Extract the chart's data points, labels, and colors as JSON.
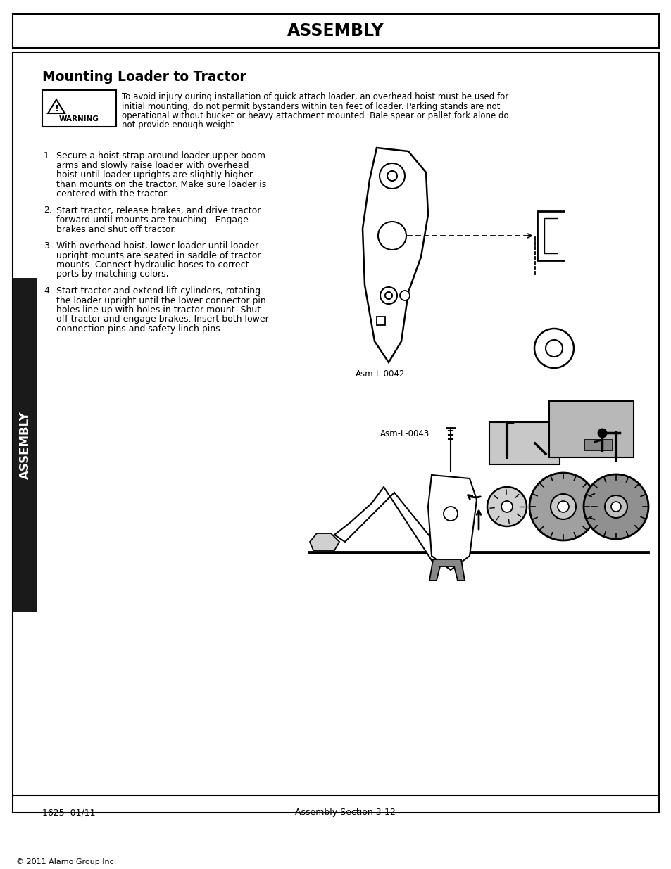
{
  "title": "ASSEMBLY",
  "section_title": "Mounting Loader to Tractor",
  "warning_lines": [
    "To avoid injury during installation of quick attach loader, an overhead hoist must be used for",
    "initial mounting, do not permit bystanders within ten feet of loader. Parking stands are not",
    "operational without bucket or heavy attachment mounted. Bale spear or pallet fork alone do",
    "not provide enough weight."
  ],
  "step1_lines": [
    "Secure a hoist strap around loader upper boom",
    "arms and slowly raise loader with overhead",
    "hoist until loader uprights are slightly higher",
    "than mounts on the tractor. Make sure loader is",
    "centered with the tractor."
  ],
  "step2_lines": [
    "Start tractor, release brakes, and drive tractor",
    "forward until mounts are touching.  Engage",
    "brakes and shut off tractor."
  ],
  "step3_lines": [
    "With overhead hoist, lower loader until loader",
    "upright mounts are seated in saddle of tractor",
    "mounts. Connect hydraulic hoses to correct",
    "ports by matching colors,"
  ],
  "step4_lines": [
    "Start tractor and extend lift cylinders, rotating",
    "the loader upright until the lower connector pin",
    "holes line up with holes in tractor mount. Shut",
    "off tractor and engage brakes. Insert both lower",
    "connection pins and safety linch pins."
  ],
  "fig1_label": "Asm-L-0042",
  "fig2_label": "Asm-L-0043",
  "sidebar_text": "ASSEMBLY",
  "footer_left": "1625  01/11",
  "footer_center": "Assembly Section 3-12",
  "copyright": "© 2011 Alamo Group Inc.",
  "bg_color": "#ffffff",
  "sidebar_bg": "#1a1a1a",
  "sidebar_text_color": "#ffffff"
}
